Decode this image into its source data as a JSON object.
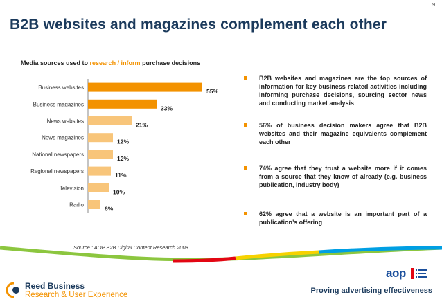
{
  "page_number": "9",
  "title": "B2B websites and magazines complement each other",
  "chart_heading": {
    "prefix": "Media sources used to ",
    "highlight": "research / inform",
    "suffix": " purchase decisions"
  },
  "chart_data": {
    "type": "bar",
    "orientation": "horizontal",
    "categories": [
      "Business websites",
      "Business magazines",
      "News websites",
      "News magazines",
      "National newspapers",
      "Regional newspapers",
      "Television",
      "Radio"
    ],
    "values": [
      55,
      33,
      21,
      12,
      12,
      11,
      10,
      6
    ],
    "value_labels": [
      "55%",
      "33%",
      "21%",
      "12%",
      "12%",
      "11%",
      "10%",
      "6%"
    ],
    "series": [
      {
        "values": [
          55,
          33,
          21,
          12,
          12,
          11,
          10,
          6
        ]
      }
    ],
    "highlighted_categories": [
      "Business websites",
      "Business magazines"
    ],
    "title": "",
    "xlabel": "",
    "ylabel": "",
    "xlim": [
      0,
      60
    ],
    "grid": false,
    "legend": "none"
  },
  "colors": {
    "title": "#1b3a5c",
    "accent_orange": "#f39200",
    "highlight_bar": "#f39200",
    "other_bar": "#f8c57a",
    "axis": "#888888"
  },
  "bullets": [
    "B2B websites and magazines are the top sources of information for key business related activities including informing purchase decisions, sourcing sector news and conducting market analysis",
    "56% of business decision makers agree that B2B websites and their magazine equivalents complement each other",
    "74% agree that they trust a website more if it comes from a source that they know of already (e.g. business publication, industry body)",
    "62% agree that a website is an important part of a publication’s offering"
  ],
  "source": "Source : AOP B2B Digital Content Research 2008",
  "footer": {
    "company_line1": "Reed Business",
    "company_line2": "Research & User Experience",
    "partner_logo": "aop",
    "tagline": "Proving advertising effectiveness"
  },
  "icons": {
    "bullet": "square-bullet-icon",
    "company_logo": "reed-business-logo",
    "partner_logo": "aop-logo"
  }
}
